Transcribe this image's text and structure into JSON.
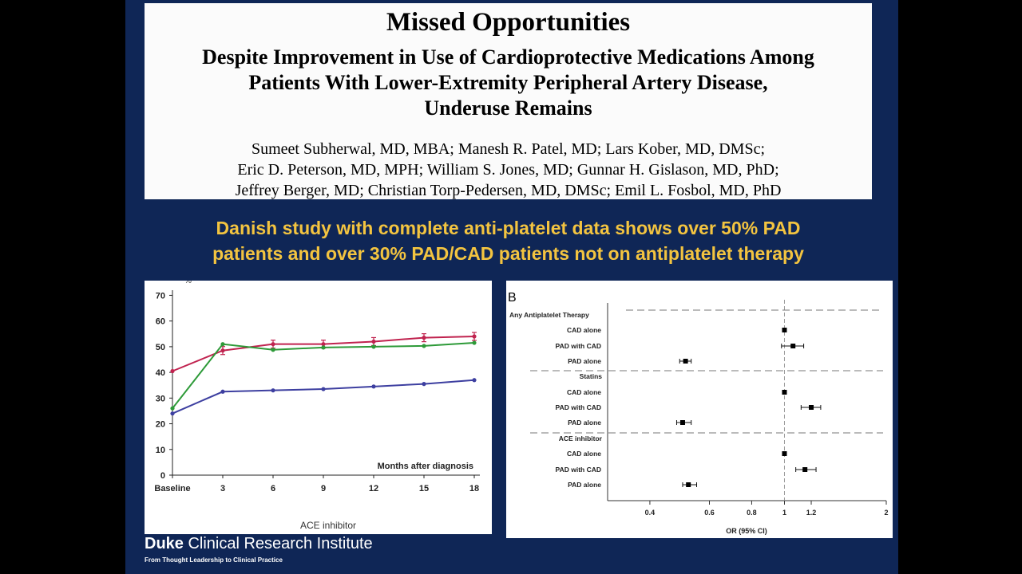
{
  "slide": {
    "title": "Missed Opportunities",
    "subtitle_lines": [
      "Despite Improvement in Use of Cardioprotective Medications Among",
      "Patients With Lower-Extremity Peripheral Artery Disease,",
      "Underuse Remains"
    ],
    "author_lines": [
      "Sumeet Subherwal, MD, MBA; Manesh R. Patel, MD; Lars Kober, MD, DMSc;",
      "Eric D. Peterson, MD, MPH; William S. Jones, MD; Gunnar H. Gislason, MD, PhD;",
      "Jeffrey Berger, MD; Christian Torp-Pedersen, MD, DMSc; Emil L. Fosbol, MD, PhD"
    ],
    "headline_lines": [
      "Danish study with complete anti-platelet data shows over 50% PAD",
      "patients and over 30% PAD/CAD patients not on antiplatelet therapy"
    ],
    "logo": {
      "name_bold": "Duke",
      "name_rest": " Clinical Research Institute",
      "tagline": "From Thought Leadership to Clinical Practice"
    }
  },
  "chart_data": [
    {
      "type": "line",
      "title": "ACE inhibitor",
      "ylabel": "%",
      "xlabel": "Months after diagnosis",
      "categories": [
        "Baseline",
        "3",
        "6",
        "9",
        "12",
        "15",
        "18"
      ],
      "y_ticks": [
        "0",
        "10",
        "20",
        "30",
        "40",
        "50",
        "60",
        "70"
      ],
      "ylim": [
        0,
        72
      ],
      "grid": false,
      "series": [
        {
          "color": "#c0234f",
          "values": [
            40.5,
            48.5,
            51,
            51,
            52,
            53.5,
            54
          ]
        },
        {
          "color": "#2d9a38",
          "values": [
            26,
            51,
            48.8,
            49.7,
            50,
            50.3,
            51.5
          ]
        },
        {
          "color": "#3d3fa0",
          "values": [
            24,
            32.5,
            33,
            33.5,
            34.5,
            35.5,
            37
          ]
        }
      ]
    },
    {
      "type": "forest",
      "panel_label": "B",
      "xlabel": "OR (95% CI)",
      "x_scale": "log",
      "x_ticks": [
        "0.4",
        "0.6",
        "0.8",
        "1",
        "1.2",
        "2"
      ],
      "reference_line": 1,
      "groups": [
        {
          "label": "Any Antiplatelet Therapy",
          "rows": [
            {
              "label": "CAD alone",
              "or": 1.0,
              "lo": 0.99,
              "hi": 1.01
            },
            {
              "label": "PAD with CAD",
              "or": 1.06,
              "lo": 0.98,
              "hi": 1.14
            },
            {
              "label": "PAD alone",
              "or": 0.51,
              "lo": 0.49,
              "hi": 0.53
            }
          ]
        },
        {
          "label": "Statins",
          "rows": [
            {
              "label": "CAD alone",
              "or": 1.0,
              "lo": 0.99,
              "hi": 1.01
            },
            {
              "label": "PAD with CAD",
              "or": 1.2,
              "lo": 1.12,
              "hi": 1.28
            },
            {
              "label": "PAD alone",
              "or": 0.5,
              "lo": 0.48,
              "hi": 0.53
            }
          ]
        },
        {
          "label": "ACE inhibitor",
          "rows": [
            {
              "label": "CAD alone",
              "or": 1.0,
              "lo": 0.99,
              "hi": 1.01
            },
            {
              "label": "PAD with CAD",
              "or": 1.15,
              "lo": 1.08,
              "hi": 1.24
            },
            {
              "label": "PAD alone",
              "or": 0.52,
              "lo": 0.5,
              "hi": 0.55
            }
          ]
        }
      ]
    }
  ]
}
